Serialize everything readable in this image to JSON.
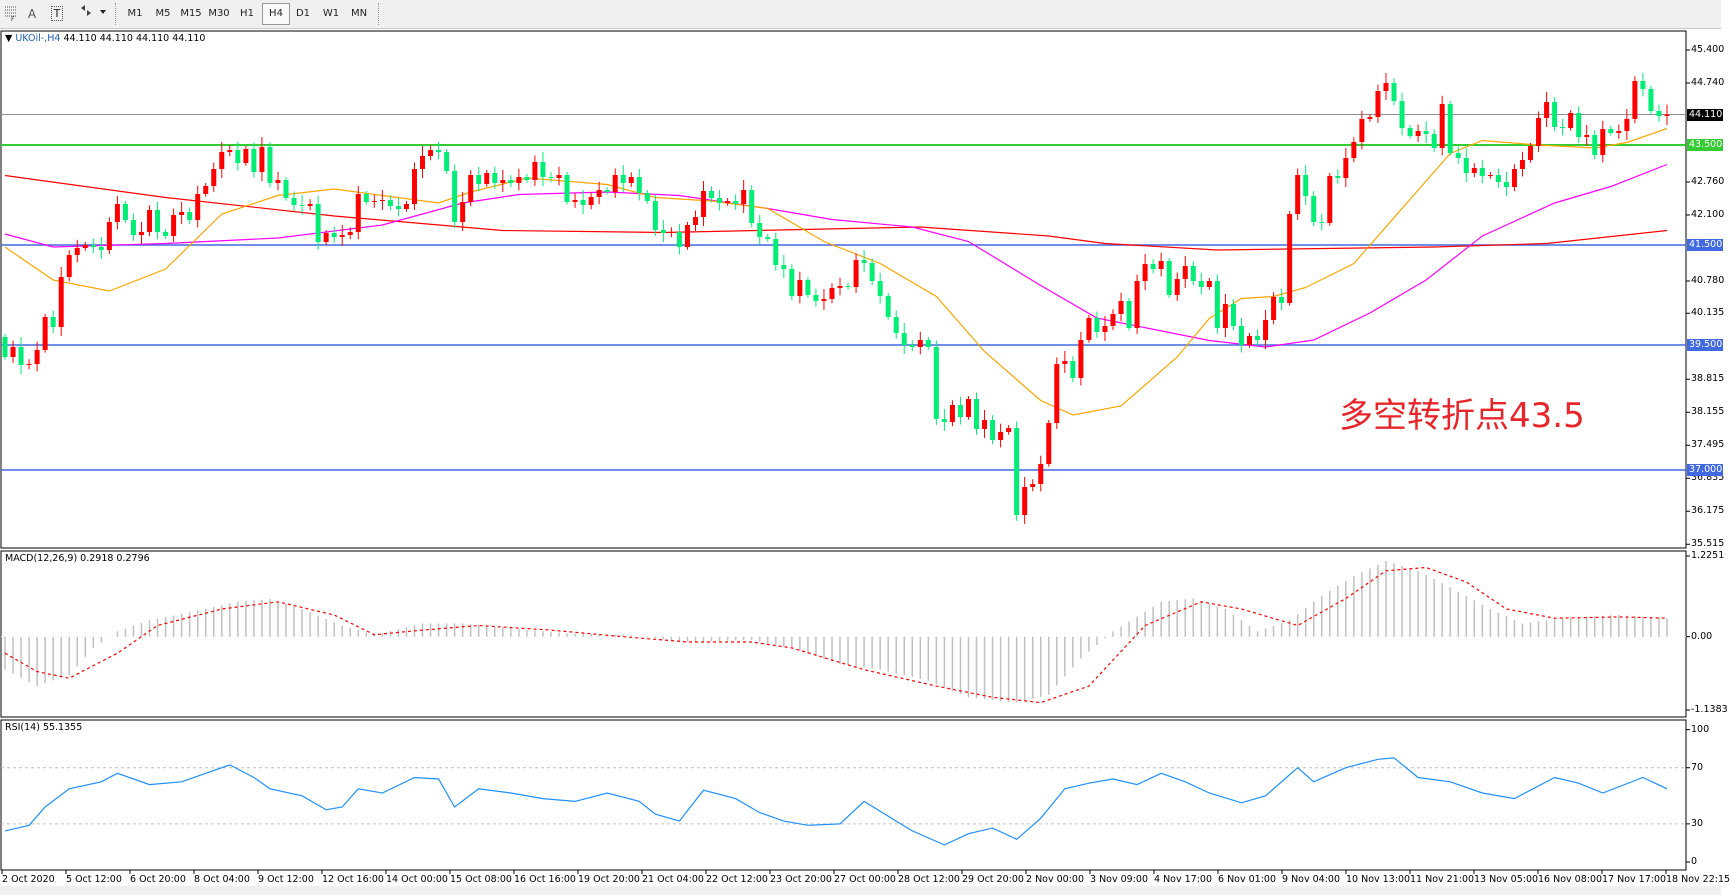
{
  "toolbar": {
    "icons": [
      "fibonacci-icon",
      "text-label-icon",
      "text-box-icon",
      "arrows-icon"
    ],
    "text_A": "A",
    "text_T": "T",
    "timeframes": [
      "M1",
      "M5",
      "M15",
      "M30",
      "H1",
      "H4",
      "D1",
      "W1",
      "MN"
    ],
    "active_timeframe": "H4"
  },
  "header": {
    "symbol": "UKOil-,H4",
    "ohlc": "44.110 44.110 44.110 44.110"
  },
  "annotation": "多空转折点43.5",
  "price_axis": {
    "labels": [
      "45.400",
      "44.740",
      "42.760",
      "42.100",
      "40.780",
      "40.135",
      "38.815",
      "38.155",
      "37.495",
      "36.835",
      "36.175",
      "35.515"
    ],
    "current_price": "44.110",
    "levels": [
      {
        "value": "43.500",
        "color": "#33cc33"
      },
      {
        "value": "41.500",
        "color": "#4169e1"
      },
      {
        "value": "39.500",
        "color": "#4169e1"
      },
      {
        "value": "37.000",
        "color": "#4169e1"
      }
    ]
  },
  "time_axis": [
    "2 Oct 2020",
    "5 Oct 12:00",
    "6 Oct 20:00",
    "8 Oct 04:00",
    "9 Oct 12:00",
    "12 Oct 16:00",
    "14 Oct 00:00",
    "15 Oct 08:00",
    "16 Oct 16:00",
    "19 Oct 20:00",
    "21 Oct 04:00",
    "22 Oct 12:00",
    "23 Oct 20:00",
    "27 Oct 00:00",
    "28 Oct 12:00",
    "29 Oct 20:00",
    "2 Nov 00:00",
    "3 Nov 09:00",
    "4 Nov 17:00",
    "6 Nov 01:00",
    "9 Nov 04:00",
    "10 Nov 13:00",
    "11 Nov 21:00",
    "13 Nov 05:00",
    "16 Nov 08:00",
    "17 Nov 17:00",
    "18 Nov 22:15"
  ],
  "macd": {
    "label": "MACD(12,26,9) 0.2918 0.2796",
    "axis": [
      "1.2251",
      "0.00",
      "-1.1383"
    ]
  },
  "rsi": {
    "label": "RSI(14) 55.1355",
    "axis": [
      "100",
      "70",
      "30",
      "0"
    ]
  },
  "chart_data": {
    "type": "candlestick",
    "colors": {
      "up": "#ff0000",
      "down": "#00ee76",
      "fast_ma": "#ffa500",
      "mid_ma": "#ff00ff",
      "slow_ma": "#ff0000",
      "current_line": "#909090"
    },
    "ylim": [
      35.515,
      45.4
    ],
    "first_open": 39.66,
    "closes": [
      39.26,
      39.46,
      39.1,
      39.12,
      39.4,
      40.06,
      39.86,
      40.86,
      41.3,
      41.44,
      41.5,
      41.46,
      41.4,
      41.96,
      42.32,
      42.0,
      41.7,
      41.76,
      42.2,
      41.76,
      41.68,
      42.1,
      42.16,
      42.0,
      42.52,
      42.68,
      43.02,
      43.36,
      43.4,
      43.14,
      43.42,
      42.96,
      43.46,
      42.74,
      42.8,
      42.44,
      42.3,
      42.28,
      42.32,
      41.56,
      41.74,
      41.66,
      41.7,
      41.76,
      42.52,
      42.36,
      42.38,
      42.4,
      42.28,
      42.22,
      42.32,
      43.02,
      43.28,
      43.4,
      43.36,
      42.98,
      41.96,
      42.36,
      42.9,
      42.72,
      42.94,
      42.74,
      42.8,
      42.74,
      42.86,
      42.8,
      43.16,
      42.86,
      42.84,
      42.9,
      42.36,
      42.4,
      42.3,
      42.46,
      42.6,
      42.56,
      42.9,
      42.74,
      42.86,
      42.54,
      42.38,
      41.8,
      41.74,
      41.76,
      41.46,
      41.9,
      42.06,
      42.58,
      42.44,
      42.34,
      42.38,
      42.32,
      42.6,
      41.94,
      41.66,
      41.62,
      41.1,
      41.02,
      40.48,
      40.8,
      40.5,
      40.38,
      40.42,
      40.64,
      40.68,
      40.66,
      41.2,
      41.14,
      40.78,
      40.48,
      40.06,
      39.74,
      39.5,
      39.46,
      39.6,
      39.46,
      38.02,
      37.96,
      38.3,
      38.06,
      38.42,
      37.82,
      38.0,
      37.6,
      37.76,
      37.84,
      36.1,
      36.66,
      36.72,
      37.12,
      37.94,
      39.12,
      39.18,
      38.84,
      39.6,
      40.04,
      39.76,
      39.88,
      40.12,
      40.38,
      39.84,
      40.78,
      41.12,
      41.02,
      41.18,
      40.5,
      40.82,
      41.08,
      40.78,
      40.66,
      40.78,
      39.84,
      40.32,
      39.88,
      39.5,
      39.68,
      39.6,
      40.0,
      40.46,
      40.34,
      42.12,
      42.9,
      42.48,
      41.96,
      41.94,
      42.88,
      42.84,
      43.24,
      43.56,
      44.02,
      44.06,
      44.58,
      44.74,
      44.38,
      43.84,
      43.68,
      43.78,
      43.72,
      43.44,
      44.32,
      43.34,
      43.24,
      42.94,
      43.04,
      42.88,
      42.9,
      42.76,
      42.66,
      43.02,
      43.2,
      43.48,
      44.04,
      44.36,
      43.86,
      43.84,
      44.14,
      43.66,
      43.7,
      43.3,
      43.82,
      43.74,
      43.78,
      44.02,
      44.78,
      44.62,
      44.18,
      44.08,
      44.11
    ],
    "slow_ma": [
      [
        0,
        42.89
      ],
      [
        20,
        42.45
      ],
      [
        41,
        42.08
      ],
      [
        62,
        41.79
      ],
      [
        82,
        41.75
      ],
      [
        114,
        41.86
      ],
      [
        130,
        41.68
      ],
      [
        137,
        41.53
      ],
      [
        151,
        41.4
      ],
      [
        178,
        41.46
      ],
      [
        192,
        41.53
      ],
      [
        207,
        41.79
      ]
    ],
    "mid_ma": [
      [
        0,
        41.72
      ],
      [
        6,
        41.46
      ],
      [
        20,
        41.53
      ],
      [
        34,
        41.64
      ],
      [
        47,
        41.9
      ],
      [
        57,
        42.34
      ],
      [
        64,
        42.51
      ],
      [
        75,
        42.56
      ],
      [
        84,
        42.49
      ],
      [
        95,
        42.23
      ],
      [
        103,
        42.01
      ],
      [
        113,
        41.86
      ],
      [
        120,
        41.57
      ],
      [
        129,
        40.69
      ],
      [
        136,
        40.04
      ],
      [
        150,
        39.59
      ],
      [
        157,
        39.46
      ],
      [
        163,
        39.6
      ],
      [
        170,
        40.14
      ],
      [
        177,
        40.8
      ],
      [
        184,
        41.68
      ],
      [
        193,
        42.34
      ],
      [
        200,
        42.67
      ],
      [
        207,
        43.11
      ]
    ],
    "fast_ma": [
      [
        0,
        41.46
      ],
      [
        6,
        40.8
      ],
      [
        13,
        40.58
      ],
      [
        20,
        41.02
      ],
      [
        27,
        42.12
      ],
      [
        34,
        42.49
      ],
      [
        41,
        42.62
      ],
      [
        47,
        42.49
      ],
      [
        54,
        42.34
      ],
      [
        58,
        42.56
      ],
      [
        65,
        42.84
      ],
      [
        75,
        42.71
      ],
      [
        81,
        42.45
      ],
      [
        88,
        42.38
      ],
      [
        95,
        42.23
      ],
      [
        102,
        41.57
      ],
      [
        109,
        41.13
      ],
      [
        116,
        40.47
      ],
      [
        122,
        39.37
      ],
      [
        129,
        38.39
      ],
      [
        133,
        38.1
      ],
      [
        139,
        38.28
      ],
      [
        146,
        39.26
      ],
      [
        150,
        40.03
      ],
      [
        154,
        40.43
      ],
      [
        158,
        40.47
      ],
      [
        162,
        40.65
      ],
      [
        168,
        41.13
      ],
      [
        174,
        42.23
      ],
      [
        180,
        43.33
      ],
      [
        184,
        43.59
      ],
      [
        191,
        43.5
      ],
      [
        198,
        43.44
      ],
      [
        202,
        43.55
      ],
      [
        207,
        43.83
      ]
    ],
    "macd_hist": [
      [
        0,
        -0.5
      ],
      [
        4,
        -0.75
      ],
      [
        8,
        -0.58
      ],
      [
        11,
        -0.17
      ],
      [
        14,
        0.08
      ],
      [
        18,
        0.25
      ],
      [
        23,
        0.37
      ],
      [
        29,
        0.53
      ],
      [
        33,
        0.57
      ],
      [
        37,
        0.42
      ],
      [
        42,
        0.17
      ],
      [
        46,
        0.03
      ],
      [
        52,
        0.2
      ],
      [
        57,
        0.2
      ],
      [
        63,
        0.13
      ],
      [
        70,
        0.05
      ],
      [
        77,
        0.03
      ],
      [
        85,
        -0.08
      ],
      [
        93,
        -0.05
      ],
      [
        98,
        -0.17
      ],
      [
        104,
        -0.42
      ],
      [
        109,
        -0.5
      ],
      [
        115,
        -0.67
      ],
      [
        120,
        -0.92
      ],
      [
        126,
        -1.0
      ],
      [
        130,
        -0.88
      ],
      [
        134,
        -0.33
      ],
      [
        138,
        0.08
      ],
      [
        144,
        0.53
      ],
      [
        148,
        0.58
      ],
      [
        152,
        0.42
      ],
      [
        156,
        0.08
      ],
      [
        160,
        0.25
      ],
      [
        164,
        0.62
      ],
      [
        168,
        0.92
      ],
      [
        172,
        1.15
      ],
      [
        176,
        1.0
      ],
      [
        180,
        0.75
      ],
      [
        185,
        0.42
      ],
      [
        189,
        0.2
      ],
      [
        194,
        0.28
      ],
      [
        201,
        0.33
      ],
      [
        207,
        0.28
      ]
    ],
    "macd_signal": [
      [
        0,
        -0.25
      ],
      [
        4,
        -0.53
      ],
      [
        8,
        -0.63
      ],
      [
        14,
        -0.25
      ],
      [
        19,
        0.17
      ],
      [
        27,
        0.42
      ],
      [
        34,
        0.53
      ],
      [
        41,
        0.33
      ],
      [
        46,
        0.03
      ],
      [
        52,
        0.1
      ],
      [
        59,
        0.17
      ],
      [
        68,
        0.1
      ],
      [
        77,
        0.0
      ],
      [
        85,
        -0.08
      ],
      [
        93,
        -0.08
      ],
      [
        98,
        -0.17
      ],
      [
        107,
        -0.5
      ],
      [
        116,
        -0.75
      ],
      [
        123,
        -0.92
      ],
      [
        129,
        -1.0
      ],
      [
        135,
        -0.75
      ],
      [
        142,
        0.17
      ],
      [
        149,
        0.53
      ],
      [
        154,
        0.42
      ],
      [
        161,
        0.17
      ],
      [
        167,
        0.58
      ],
      [
        172,
        1.0
      ],
      [
        177,
        1.05
      ],
      [
        182,
        0.83
      ],
      [
        187,
        0.42
      ],
      [
        193,
        0.28
      ],
      [
        201,
        0.3
      ],
      [
        207,
        0.28
      ]
    ],
    "macd_ylim": [
      -1.1383,
      1.2251
    ],
    "rsi": [
      [
        0,
        25
      ],
      [
        3,
        29
      ],
      [
        5,
        42
      ],
      [
        8,
        55
      ],
      [
        12,
        60
      ],
      [
        14,
        66
      ],
      [
        18,
        58
      ],
      [
        22,
        60
      ],
      [
        25,
        66
      ],
      [
        28,
        72
      ],
      [
        31,
        63
      ],
      [
        33,
        55
      ],
      [
        37,
        50
      ],
      [
        40,
        40
      ],
      [
        42,
        42
      ],
      [
        44,
        55
      ],
      [
        47,
        52
      ],
      [
        51,
        63
      ],
      [
        54,
        62
      ],
      [
        56,
        42
      ],
      [
        59,
        55
      ],
      [
        63,
        52
      ],
      [
        67,
        48
      ],
      [
        71,
        46
      ],
      [
        75,
        52
      ],
      [
        79,
        46
      ],
      [
        81,
        37
      ],
      [
        84,
        32
      ],
      [
        87,
        54
      ],
      [
        91,
        48
      ],
      [
        94,
        38
      ],
      [
        97,
        32
      ],
      [
        100,
        29
      ],
      [
        104,
        30
      ],
      [
        107,
        46
      ],
      [
        111,
        32
      ],
      [
        113,
        25
      ],
      [
        117,
        15
      ],
      [
        120,
        23
      ],
      [
        123,
        27
      ],
      [
        126,
        19
      ],
      [
        129,
        34
      ],
      [
        132,
        55
      ],
      [
        135,
        59
      ],
      [
        138,
        62
      ],
      [
        141,
        58
      ],
      [
        144,
        66
      ],
      [
        147,
        60
      ],
      [
        150,
        52
      ],
      [
        154,
        45
      ],
      [
        157,
        50
      ],
      [
        161,
        70
      ],
      [
        163,
        60
      ],
      [
        167,
        70
      ],
      [
        171,
        76
      ],
      [
        173,
        77
      ],
      [
        176,
        63
      ],
      [
        180,
        60
      ],
      [
        184,
        52
      ],
      [
        188,
        48
      ],
      [
        193,
        63
      ],
      [
        196,
        59
      ],
      [
        199,
        52
      ],
      [
        204,
        63
      ],
      [
        207,
        55
      ]
    ],
    "rsi_levels": [
      70,
      30
    ],
    "rsi_ylim": [
      0,
      100
    ]
  }
}
